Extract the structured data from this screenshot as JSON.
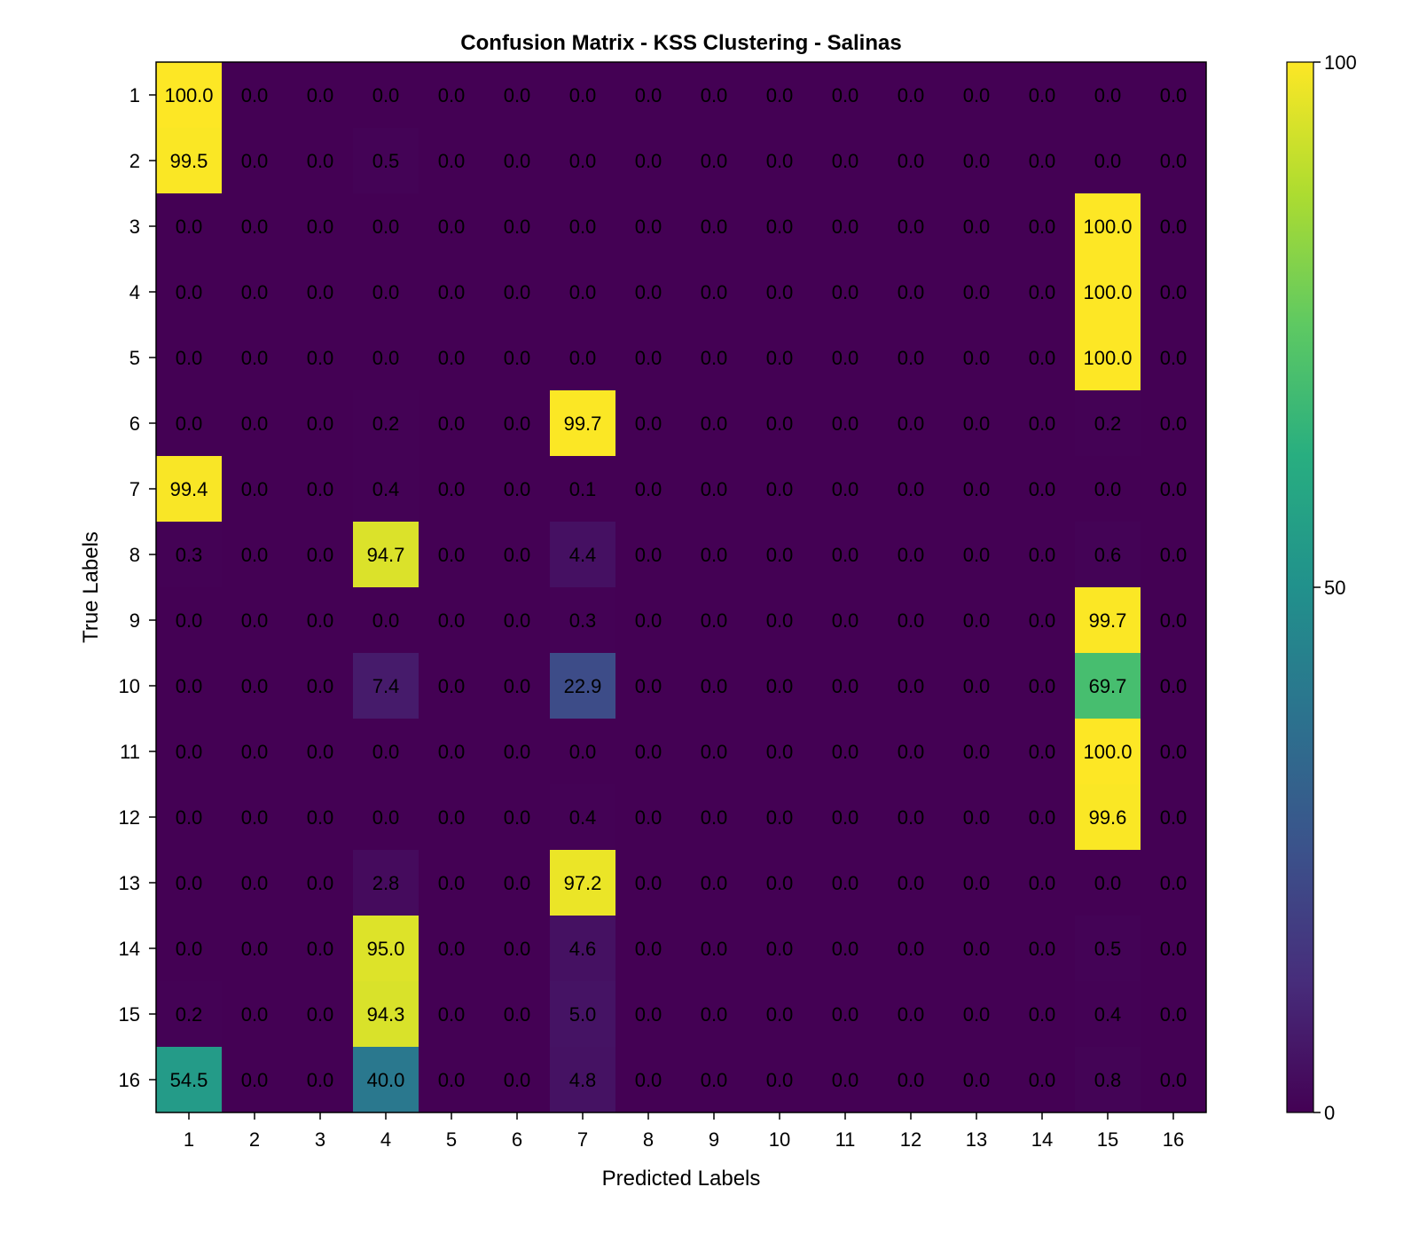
{
  "chart_data": {
    "type": "heatmap",
    "title": "Confusion Matrix - KSS Clustering - Salinas",
    "xlabel": "Predicted Labels",
    "ylabel": "True Labels",
    "x_categories": [
      "1",
      "2",
      "3",
      "4",
      "5",
      "6",
      "7",
      "8",
      "9",
      "10",
      "11",
      "12",
      "13",
      "14",
      "15",
      "16"
    ],
    "y_categories": [
      "1",
      "2",
      "3",
      "4",
      "5",
      "6",
      "7",
      "8",
      "9",
      "10",
      "11",
      "12",
      "13",
      "14",
      "15",
      "16"
    ],
    "values": [
      [
        100.0,
        0.0,
        0.0,
        0.0,
        0.0,
        0.0,
        0.0,
        0.0,
        0.0,
        0.0,
        0.0,
        0.0,
        0.0,
        0.0,
        0.0,
        0.0
      ],
      [
        99.5,
        0.0,
        0.0,
        0.5,
        0.0,
        0.0,
        0.0,
        0.0,
        0.0,
        0.0,
        0.0,
        0.0,
        0.0,
        0.0,
        0.0,
        0.0
      ],
      [
        0.0,
        0.0,
        0.0,
        0.0,
        0.0,
        0.0,
        0.0,
        0.0,
        0.0,
        0.0,
        0.0,
        0.0,
        0.0,
        0.0,
        100.0,
        0.0
      ],
      [
        0.0,
        0.0,
        0.0,
        0.0,
        0.0,
        0.0,
        0.0,
        0.0,
        0.0,
        0.0,
        0.0,
        0.0,
        0.0,
        0.0,
        100.0,
        0.0
      ],
      [
        0.0,
        0.0,
        0.0,
        0.0,
        0.0,
        0.0,
        0.0,
        0.0,
        0.0,
        0.0,
        0.0,
        0.0,
        0.0,
        0.0,
        100.0,
        0.0
      ],
      [
        0.0,
        0.0,
        0.0,
        0.2,
        0.0,
        0.0,
        99.7,
        0.0,
        0.0,
        0.0,
        0.0,
        0.0,
        0.0,
        0.0,
        0.2,
        0.0
      ],
      [
        99.4,
        0.0,
        0.0,
        0.4,
        0.0,
        0.0,
        0.1,
        0.0,
        0.0,
        0.0,
        0.0,
        0.0,
        0.0,
        0.0,
        0.0,
        0.0
      ],
      [
        0.3,
        0.0,
        0.0,
        94.7,
        0.0,
        0.0,
        4.4,
        0.0,
        0.0,
        0.0,
        0.0,
        0.0,
        0.0,
        0.0,
        0.6,
        0.0
      ],
      [
        0.0,
        0.0,
        0.0,
        0.0,
        0.0,
        0.0,
        0.3,
        0.0,
        0.0,
        0.0,
        0.0,
        0.0,
        0.0,
        0.0,
        99.7,
        0.0
      ],
      [
        0.0,
        0.0,
        0.0,
        7.4,
        0.0,
        0.0,
        22.9,
        0.0,
        0.0,
        0.0,
        0.0,
        0.0,
        0.0,
        0.0,
        69.7,
        0.0
      ],
      [
        0.0,
        0.0,
        0.0,
        0.0,
        0.0,
        0.0,
        0.0,
        0.0,
        0.0,
        0.0,
        0.0,
        0.0,
        0.0,
        0.0,
        100.0,
        0.0
      ],
      [
        0.0,
        0.0,
        0.0,
        0.0,
        0.0,
        0.0,
        0.4,
        0.0,
        0.0,
        0.0,
        0.0,
        0.0,
        0.0,
        0.0,
        99.6,
        0.0
      ],
      [
        0.0,
        0.0,
        0.0,
        2.8,
        0.0,
        0.0,
        97.2,
        0.0,
        0.0,
        0.0,
        0.0,
        0.0,
        0.0,
        0.0,
        0.0,
        0.0
      ],
      [
        0.0,
        0.0,
        0.0,
        95.0,
        0.0,
        0.0,
        4.6,
        0.0,
        0.0,
        0.0,
        0.0,
        0.0,
        0.0,
        0.0,
        0.5,
        0.0
      ],
      [
        0.2,
        0.0,
        0.0,
        94.3,
        0.0,
        0.0,
        5.0,
        0.0,
        0.0,
        0.0,
        0.0,
        0.0,
        0.0,
        0.0,
        0.4,
        0.0
      ],
      [
        54.5,
        0.0,
        0.0,
        40.0,
        0.0,
        0.0,
        4.8,
        0.0,
        0.0,
        0.0,
        0.0,
        0.0,
        0.0,
        0.0,
        0.8,
        0.0
      ]
    ],
    "value_range": [
      0,
      100
    ],
    "colormap": "viridis",
    "colorbar": {
      "ticks": [
        0,
        50,
        100
      ],
      "tick_labels": [
        "0",
        "50",
        "100"
      ]
    },
    "grid": false
  }
}
